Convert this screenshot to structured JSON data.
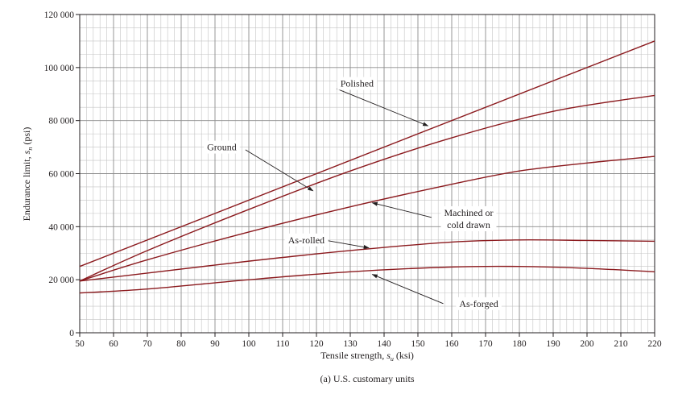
{
  "colors": {
    "curve": "#8b1a1e",
    "grid_major": "#8c8c8c",
    "grid_minor": "#c4c4c4",
    "axis": "#231f20",
    "arrow": "#231f20"
  },
  "caption": "(a) U.S. customary units",
  "chart_data": {
    "type": "line",
    "title": "",
    "xlabel": "Tensile strength, s_u (ksi)",
    "ylabel": "Endurance limit, s_n (psi)",
    "xlim": [
      50,
      220
    ],
    "ylim": [
      0,
      120000
    ],
    "x_ticks": [
      50,
      60,
      70,
      80,
      90,
      100,
      110,
      120,
      130,
      140,
      150,
      160,
      170,
      180,
      190,
      200,
      210,
      220
    ],
    "x_tick_labels": [
      "50",
      "60",
      "70",
      "80",
      "90",
      "100",
      "110",
      "120",
      "130",
      "140",
      "150",
      "160",
      "170",
      "180",
      "190",
      "200",
      "210",
      "220"
    ],
    "y_ticks": [
      0,
      20000,
      40000,
      60000,
      80000,
      100000,
      120000
    ],
    "y_tick_labels": [
      "0",
      "20 000",
      "40 000",
      "60 000",
      "80 000",
      "100 000",
      "120 000"
    ],
    "grid": true,
    "series": [
      {
        "name": "Polished",
        "x": [
          50,
          220
        ],
        "y": [
          25000,
          110000
        ]
      },
      {
        "name": "Ground",
        "x": [
          50,
          70,
          100,
          130,
          160,
          190,
          220
        ],
        "y": [
          19500,
          31000,
          46500,
          61000,
          73500,
          83500,
          89500
        ]
      },
      {
        "name": "Machined or cold drawn",
        "x": [
          50,
          70,
          100,
          130,
          160,
          180,
          200,
          220
        ],
        "y": [
          19500,
          27500,
          38000,
          47500,
          56000,
          61000,
          64000,
          66500
        ]
      },
      {
        "name": "As-rolled",
        "x": [
          50,
          70,
          100,
          130,
          160,
          180,
          200,
          220
        ],
        "y": [
          19500,
          22500,
          27000,
          31000,
          34200,
          35000,
          34800,
          34500
        ]
      },
      {
        "name": "As-forged",
        "x": [
          50,
          70,
          100,
          130,
          160,
          180,
          200,
          220
        ],
        "y": [
          15000,
          16500,
          20000,
          23000,
          24800,
          25000,
          24300,
          23000
        ]
      }
    ],
    "annotations": [
      {
        "lines": [
          "Polished"
        ],
        "text_at": [
          132,
          94000
        ],
        "arrow_from": [
          126,
          92000
        ],
        "arrow_to": [
          153,
          78000
        ]
      },
      {
        "lines": [
          "Ground"
        ],
        "text_at": [
          92,
          70000
        ],
        "arrow_from": [
          99,
          69000
        ],
        "arrow_to": [
          119,
          53500
        ]
      },
      {
        "lines": [
          "Machined or",
          "cold drawn"
        ],
        "text_at": [
          165,
          43000
        ],
        "arrow_from": [
          154,
          43500
        ],
        "arrow_to": [
          136.5,
          49000
        ]
      },
      {
        "lines": [
          "As-rolled"
        ],
        "text_at": [
          117,
          35000
        ],
        "arrow_from": [
          123.5,
          34700
        ],
        "arrow_to": [
          135.5,
          32000
        ]
      },
      {
        "lines": [
          "As-forged"
        ],
        "text_at": [
          168,
          11000
        ],
        "arrow_from": [
          157.5,
          11000
        ],
        "arrow_to": [
          136.5,
          22000
        ]
      }
    ]
  }
}
